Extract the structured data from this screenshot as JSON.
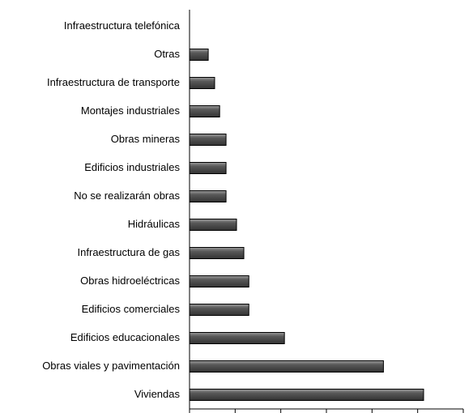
{
  "chart_data": {
    "type": "barh",
    "categories": [
      "Infraestructura telefónica",
      "Otras",
      "Infraestructura de transporte",
      "Montajes industriales",
      "Obras mineras",
      "Edificios industriales",
      "No se realizarán obras",
      "Hidráulicas",
      "Infraestructura de gas",
      "Obras hidroeléctricas",
      "Edificios comerciales",
      "Edificios educacionales",
      "Obras viales y pavimentación",
      "Viviendas"
    ],
    "values": [
      0,
      0.41,
      0.55,
      0.66,
      0.8,
      0.8,
      0.8,
      1.03,
      1.19,
      1.3,
      1.3,
      2.08,
      4.25,
      5.13
    ],
    "color": "#585858",
    "xlim": [
      0,
      6
    ],
    "xticks": [
      0,
      1,
      2,
      3,
      4,
      5,
      6
    ],
    "grid": false
  }
}
